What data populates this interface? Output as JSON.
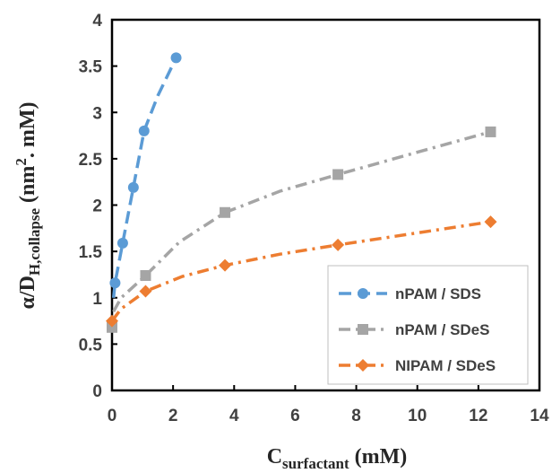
{
  "chart_data": {
    "type": "scatter",
    "xlabel": {
      "main": "C",
      "sub": "surfactant",
      "unit": " (mM)"
    },
    "ylabel": {
      "main": "α/D",
      "sub": "H,collapse",
      "unit_open": " (nm",
      "sup": "2",
      "unit_close": ". mM)"
    },
    "xlim": [
      0,
      14
    ],
    "ylim": [
      0,
      4
    ],
    "xticks": [
      "0",
      "2",
      "4",
      "6",
      "8",
      "10",
      "12",
      "14"
    ],
    "yticks": [
      "0",
      "0.5",
      "1",
      "1.5",
      "2",
      "2.5",
      "3",
      "3.5",
      "4"
    ],
    "grid": false,
    "legend_position": "bottom-right",
    "series": [
      {
        "name": "nPAM / SDS",
        "color": "#5B9BD5",
        "marker": "circle",
        "line_style": "dashed",
        "points": [
          [
            0.1,
            1.16
          ],
          [
            0.35,
            1.59
          ],
          [
            0.7,
            2.19
          ],
          [
            1.05,
            2.8
          ],
          [
            2.1,
            3.59
          ]
        ],
        "trend": [
          [
            0.05,
            1.0
          ],
          [
            0.1,
            1.16
          ],
          [
            0.35,
            1.59
          ],
          [
            0.7,
            2.19
          ],
          [
            1.05,
            2.8
          ],
          [
            1.5,
            3.18
          ],
          [
            2.1,
            3.59
          ]
        ]
      },
      {
        "name": "nPAM / SDeS",
        "color": "#A5A5A5",
        "marker": "square",
        "line_style": "dash-dot",
        "points": [
          [
            0.0,
            0.68
          ],
          [
            1.1,
            1.24
          ],
          [
            3.7,
            1.92
          ],
          [
            7.4,
            2.33
          ],
          [
            12.4,
            2.79
          ]
        ],
        "trend": [
          [
            0.05,
            0.85
          ],
          [
            0.3,
            1.0
          ],
          [
            1.1,
            1.24
          ],
          [
            2.2,
            1.6
          ],
          [
            3.7,
            1.92
          ],
          [
            5.5,
            2.15
          ],
          [
            7.4,
            2.33
          ],
          [
            10.0,
            2.57
          ],
          [
            12.4,
            2.79
          ]
        ]
      },
      {
        "name": "NIPAM / SDeS",
        "color": "#ED7D31",
        "marker": "diamond",
        "line_style": "dash-dot",
        "points": [
          [
            0.0,
            0.75
          ],
          [
            1.1,
            1.07
          ],
          [
            3.7,
            1.35
          ],
          [
            7.4,
            1.57
          ],
          [
            12.4,
            1.82
          ]
        ],
        "trend": [
          [
            0.0,
            0.75
          ],
          [
            0.3,
            0.88
          ],
          [
            1.1,
            1.07
          ],
          [
            2.3,
            1.23
          ],
          [
            3.7,
            1.35
          ],
          [
            5.5,
            1.47
          ],
          [
            7.4,
            1.57
          ],
          [
            10.0,
            1.7
          ],
          [
            12.4,
            1.82
          ]
        ]
      }
    ]
  }
}
